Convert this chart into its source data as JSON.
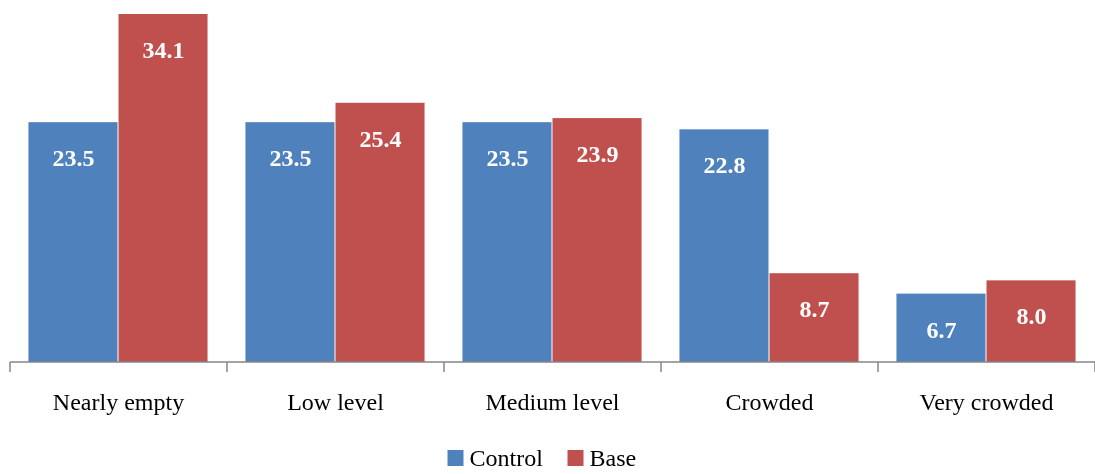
{
  "chart_data": {
    "type": "bar",
    "categories": [
      "Nearly empty",
      "Low level",
      "Medium level",
      "Crowded",
      "Very crowded"
    ],
    "series": [
      {
        "name": "Control",
        "color": "#4f81bd",
        "values": [
          23.5,
          23.5,
          23.5,
          22.8,
          6.7
        ],
        "value_labels": [
          "23.5",
          "23.5",
          "23.5",
          "22.8",
          "6.7"
        ]
      },
      {
        "name": "Base",
        "color": "#c0504d",
        "values": [
          34.1,
          25.4,
          23.9,
          8.7,
          8.0
        ],
        "value_labels": [
          "34.1",
          "25.4",
          "23.9",
          "8.7",
          "8.0"
        ]
      }
    ],
    "legend": "bottom"
  }
}
